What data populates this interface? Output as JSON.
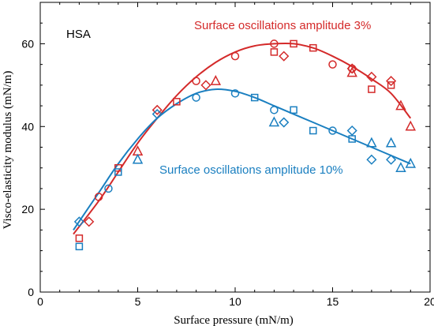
{
  "chart_data": {
    "type": "scatter",
    "title": "",
    "panel_label": "HSA",
    "xlabel": "Surface pressure (mN/m)",
    "ylabel": "Visco-elasticity modulus (mN/m)",
    "xlim": [
      0,
      20
    ],
    "ylim": [
      0,
      70
    ],
    "xticks": [
      0,
      5,
      10,
      15,
      20
    ],
    "yticks": [
      0,
      20,
      40,
      60
    ],
    "grid": false,
    "series": [
      {
        "label": "Surface oscillations amplitude 3%",
        "color": "#d42a2a",
        "circle": [
          [
            3,
            23
          ],
          [
            8,
            51
          ],
          [
            10,
            57
          ],
          [
            12,
            60
          ],
          [
            15,
            55
          ],
          [
            16,
            54
          ]
        ],
        "square": [
          [
            2,
            13
          ],
          [
            4,
            30
          ],
          [
            7,
            46
          ],
          [
            12,
            58
          ],
          [
            13,
            60
          ],
          [
            14,
            59
          ],
          [
            17,
            49
          ],
          [
            18,
            50
          ]
        ],
        "diamond": [
          [
            2.5,
            17
          ],
          [
            6,
            44
          ],
          [
            8.5,
            50
          ],
          [
            12.5,
            57
          ],
          [
            16,
            54
          ],
          [
            17,
            52
          ],
          [
            18,
            51
          ]
        ],
        "triangle": [
          [
            5,
            34
          ],
          [
            9,
            51
          ],
          [
            16,
            53
          ],
          [
            18.5,
            45
          ],
          [
            19,
            40
          ]
        ],
        "fit": [
          [
            1.7,
            14
          ],
          [
            3,
            22
          ],
          [
            4,
            29
          ],
          [
            5,
            36
          ],
          [
            6,
            42
          ],
          [
            7,
            47.5
          ],
          [
            8,
            52
          ],
          [
            9,
            55.5
          ],
          [
            10,
            58
          ],
          [
            11,
            59.5
          ],
          [
            12,
            60
          ],
          [
            13,
            60
          ],
          [
            14,
            59
          ],
          [
            15,
            57
          ],
          [
            16,
            54.5
          ],
          [
            17,
            51.5
          ],
          [
            18,
            48
          ],
          [
            19,
            42
          ]
        ]
      },
      {
        "label": "Surface oscillations amplitude 10%",
        "color": "#1a7fc0",
        "circle": [
          [
            3.5,
            25
          ],
          [
            8,
            47
          ],
          [
            10,
            48
          ],
          [
            12,
            44
          ],
          [
            15,
            39
          ]
        ],
        "square": [
          [
            2,
            11
          ],
          [
            4,
            29
          ],
          [
            11,
            47
          ],
          [
            13,
            44
          ],
          [
            14,
            39
          ],
          [
            16,
            37
          ]
        ],
        "diamond": [
          [
            2,
            17
          ],
          [
            6,
            43
          ],
          [
            12.5,
            41
          ],
          [
            16,
            39
          ],
          [
            17,
            32
          ],
          [
            18,
            32
          ]
        ],
        "triangle": [
          [
            5,
            32
          ],
          [
            12,
            41
          ],
          [
            17,
            36
          ],
          [
            18,
            36
          ],
          [
            18.5,
            30
          ],
          [
            19,
            31
          ]
        ],
        "fit": [
          [
            1.7,
            15
          ],
          [
            3,
            24
          ],
          [
            4,
            31
          ],
          [
            5,
            37
          ],
          [
            6,
            42
          ],
          [
            7,
            45.5
          ],
          [
            8,
            48
          ],
          [
            9,
            49
          ],
          [
            10,
            48.5
          ],
          [
            11,
            47
          ],
          [
            12,
            45
          ],
          [
            13,
            43
          ],
          [
            14,
            41
          ],
          [
            15,
            39
          ],
          [
            16,
            37
          ],
          [
            17,
            35
          ],
          [
            18,
            33
          ],
          [
            19,
            31
          ]
        ]
      }
    ]
  }
}
